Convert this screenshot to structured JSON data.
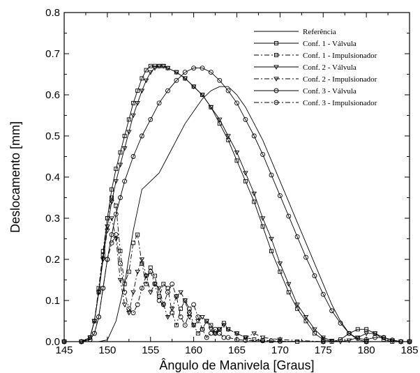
{
  "chart_data": {
    "type": "line",
    "xlabel": "Ângulo de Manivela [Graus]",
    "ylabel": "Deslocamento [mm]",
    "xlim": [
      145,
      185
    ],
    "ylim": [
      0,
      0.8
    ],
    "xticks": [
      "145",
      "150",
      "155",
      "160",
      "165",
      "170",
      "175",
      "180",
      "185"
    ],
    "yticks": [
      "0.0",
      "0.1",
      "0.2",
      "0.3",
      "0.4",
      "0.5",
      "0.6",
      "0.7",
      "0.8"
    ],
    "grid": false,
    "legend_position": "top-right",
    "series": [
      {
        "name": "Referência",
        "line": "solid",
        "marker": "none",
        "x": [
          145,
          149,
          150,
          151,
          152,
          153,
          154,
          155,
          156,
          157,
          158,
          159,
          160,
          161,
          162,
          163,
          164,
          165,
          166,
          167,
          168,
          169,
          170,
          171,
          172,
          173,
          174,
          175,
          176,
          177,
          178,
          179,
          180,
          181,
          182,
          185
        ],
        "y": [
          0,
          0,
          0.004,
          0.05,
          0.14,
          0.27,
          0.37,
          0.39,
          0.41,
          0.45,
          0.49,
          0.53,
          0.56,
          0.59,
          0.61,
          0.62,
          0.62,
          0.6,
          0.57,
          0.53,
          0.49,
          0.44,
          0.39,
          0.34,
          0.29,
          0.24,
          0.19,
          0.14,
          0.09,
          0.05,
          0.02,
          0.005,
          0,
          0,
          0,
          0
        ]
      },
      {
        "name": "Conf. 1 - Válvula",
        "line": "solid",
        "marker": "square",
        "x": [
          145,
          147,
          148,
          148.5,
          149,
          149.5,
          150,
          150.5,
          151,
          151.5,
          152,
          152.5,
          153,
          153.5,
          154,
          154.5,
          155,
          155.5,
          156,
          156.5,
          157,
          158,
          159,
          160,
          161,
          162,
          163,
          164,
          165,
          166,
          167,
          168,
          169,
          170,
          171,
          172,
          173,
          174,
          175,
          176,
          177,
          178,
          179,
          180,
          181,
          182,
          183,
          184,
          185
        ],
        "y": [
          0,
          0,
          0.01,
          0.05,
          0.12,
          0.21,
          0.3,
          0.37,
          0.42,
          0.46,
          0.5,
          0.54,
          0.58,
          0.61,
          0.64,
          0.66,
          0.67,
          0.67,
          0.67,
          0.67,
          0.665,
          0.655,
          0.64,
          0.62,
          0.6,
          0.57,
          0.53,
          0.49,
          0.44,
          0.39,
          0.34,
          0.28,
          0.22,
          0.17,
          0.12,
          0.08,
          0.05,
          0.02,
          0.005,
          0,
          0.005,
          0.02,
          0.03,
          0.03,
          0.02,
          0.005,
          0,
          0,
          0
        ]
      },
      {
        "name": "Conf. 1 - Impulsionador",
        "line": "dashdot",
        "marker": "square",
        "x": [
          145,
          147,
          148,
          148.5,
          149,
          149.5,
          150,
          150.5,
          151,
          151.5,
          152,
          152.5,
          153,
          153.5,
          154,
          154.5,
          155,
          155.5,
          156,
          156.5,
          157,
          157.5,
          158,
          158.5,
          159,
          159.5,
          160,
          160.5,
          161,
          161.5,
          162,
          162.5,
          163,
          163.5,
          164,
          165,
          166,
          167,
          168,
          169,
          170,
          172,
          175,
          180,
          185
        ],
        "y": [
          0,
          0,
          0.01,
          0.05,
          0.13,
          0.22,
          0.3,
          0.35,
          0.33,
          0.22,
          0.14,
          0.17,
          0.24,
          0.26,
          0.19,
          0.14,
          0.18,
          0.16,
          0.11,
          0.14,
          0.13,
          0.07,
          0.04,
          0.08,
          0.1,
          0.08,
          0.04,
          0.02,
          0.03,
          0.05,
          0.04,
          0.02,
          0.03,
          0.045,
          0.03,
          0.02,
          0.01,
          0.005,
          0.003,
          0.002,
          0.001,
          0,
          0,
          0,
          0
        ]
      },
      {
        "name": "Conf. 2 - Válvula",
        "line": "solid",
        "marker": "triangle-down",
        "x": [
          145,
          147,
          148,
          148.5,
          149,
          149.5,
          150,
          150.5,
          151,
          151.5,
          152,
          152.5,
          153,
          153.5,
          154,
          154.5,
          155,
          155.5,
          156,
          156.5,
          157,
          158,
          159,
          160,
          161,
          162,
          163,
          164,
          165,
          166,
          167,
          168,
          169,
          170,
          171,
          172,
          173,
          174,
          175,
          176,
          177,
          178,
          179,
          180,
          181,
          182,
          183,
          184,
          185
        ],
        "y": [
          0,
          0,
          0.01,
          0.05,
          0.12,
          0.2,
          0.28,
          0.34,
          0.39,
          0.43,
          0.47,
          0.51,
          0.55,
          0.58,
          0.61,
          0.635,
          0.655,
          0.665,
          0.67,
          0.67,
          0.665,
          0.655,
          0.64,
          0.62,
          0.6,
          0.57,
          0.54,
          0.5,
          0.46,
          0.41,
          0.36,
          0.3,
          0.25,
          0.19,
          0.14,
          0.09,
          0.06,
          0.03,
          0.01,
          0.002,
          0,
          0.003,
          0.01,
          0.02,
          0.02,
          0.01,
          0.003,
          0,
          0
        ]
      },
      {
        "name": "Conf. 2 - Impulsionador",
        "line": "dashdot",
        "marker": "triangle-down",
        "x": [
          145,
          147,
          148,
          148.5,
          149,
          149.5,
          150,
          150.5,
          151,
          151.5,
          152,
          152.5,
          153,
          153.5,
          154,
          154.5,
          155,
          155.5,
          156,
          156.5,
          157,
          157.5,
          158,
          158.5,
          159,
          159.5,
          160,
          160.5,
          161,
          161.5,
          162,
          162.5,
          163,
          163.5,
          164,
          165,
          166,
          167,
          168,
          170,
          175,
          180,
          185
        ],
        "y": [
          0,
          0,
          0.01,
          0.05,
          0.12,
          0.2,
          0.27,
          0.3,
          0.25,
          0.15,
          0.09,
          0.07,
          0.12,
          0.17,
          0.2,
          0.16,
          0.12,
          0.14,
          0.13,
          0.09,
          0.06,
          0.08,
          0.11,
          0.12,
          0.1,
          0.06,
          0.04,
          0.05,
          0.06,
          0.05,
          0.03,
          0.02,
          0.03,
          0.04,
          0.03,
          0.02,
          0.01,
          0.02,
          0.01,
          0.005,
          0,
          0,
          0
        ]
      },
      {
        "name": "Conf. 3 - Válvula",
        "line": "solid",
        "marker": "circle",
        "x": [
          145,
          147,
          148,
          148.5,
          149,
          149.5,
          150,
          150.5,
          151,
          151.5,
          152,
          153,
          154,
          155,
          156,
          157,
          158,
          159,
          160,
          161,
          162,
          163,
          164,
          165,
          166,
          167,
          168,
          169,
          170,
          171,
          172,
          173,
          174,
          175,
          176,
          177,
          178,
          179,
          180,
          181,
          182,
          183,
          184,
          185
        ],
        "y": [
          0,
          0,
          0.005,
          0.02,
          0.06,
          0.13,
          0.2,
          0.26,
          0.31,
          0.35,
          0.39,
          0.45,
          0.5,
          0.54,
          0.58,
          0.61,
          0.635,
          0.655,
          0.665,
          0.665,
          0.655,
          0.635,
          0.61,
          0.58,
          0.54,
          0.5,
          0.455,
          0.405,
          0.355,
          0.305,
          0.255,
          0.205,
          0.16,
          0.115,
          0.075,
          0.045,
          0.02,
          0.008,
          0.005,
          0.01,
          0.01,
          0.004,
          0,
          0
        ]
      },
      {
        "name": "Conf. 3 - Impulsionador",
        "line": "dashdot",
        "marker": "circle",
        "x": [
          145,
          147,
          148,
          148.5,
          149,
          149.5,
          150,
          150.5,
          151,
          151.5,
          152,
          152.5,
          153,
          153.5,
          154,
          154.5,
          155,
          155.5,
          156,
          156.5,
          157,
          157.5,
          158,
          158.5,
          159,
          159.5,
          160,
          160.5,
          161,
          161.5,
          162,
          162.5,
          163,
          163.5,
          164,
          165,
          166,
          168,
          170,
          175,
          180,
          185
        ],
        "y": [
          0,
          0,
          0.005,
          0.02,
          0.06,
          0.13,
          0.2,
          0.24,
          0.26,
          0.19,
          0.12,
          0.08,
          0.07,
          0.09,
          0.13,
          0.16,
          0.17,
          0.14,
          0.1,
          0.09,
          0.12,
          0.14,
          0.11,
          0.06,
          0.04,
          0.07,
          0.09,
          0.06,
          0.03,
          0.01,
          0.02,
          0.03,
          0.02,
          0.01,
          0.01,
          0.005,
          0.003,
          0.002,
          0.001,
          0,
          0,
          0
        ]
      }
    ]
  }
}
